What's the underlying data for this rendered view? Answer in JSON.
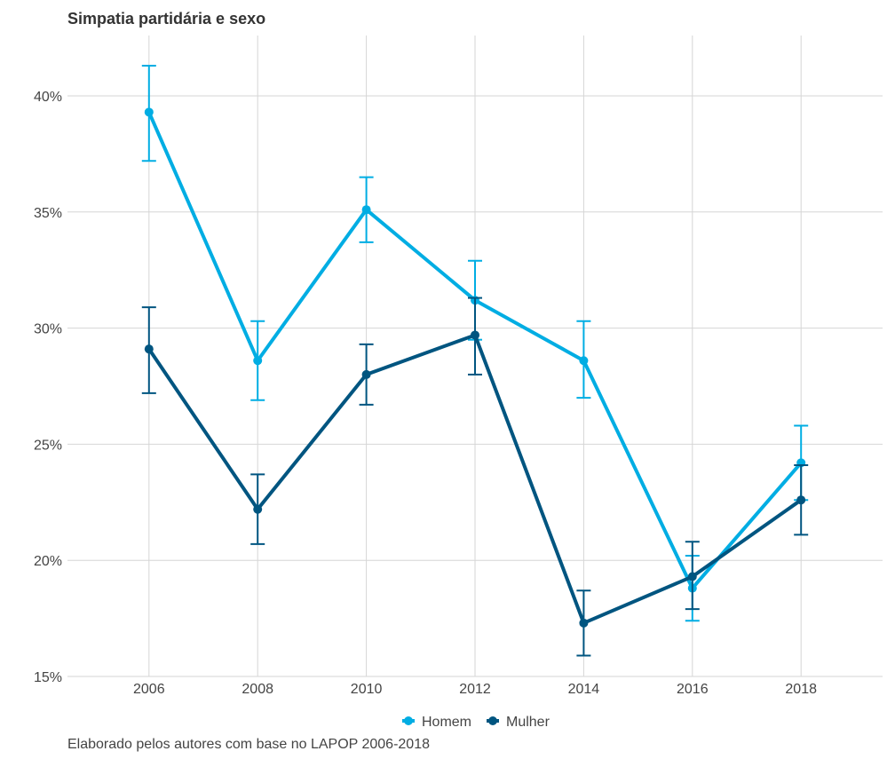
{
  "chart_data": {
    "type": "line",
    "title": "Simpatia partidária e sexo",
    "caption": "Elaborado pelos autores com base no LAPOP 2006-2018",
    "x": [
      2006,
      2008,
      2010,
      2012,
      2014,
      2016,
      2018
    ],
    "x_tick_labels": [
      "2006",
      "2008",
      "2010",
      "2012",
      "2014",
      "2016",
      "2018"
    ],
    "xlim": [
      2004.5,
      2019.5
    ],
    "ylim": [
      15,
      42.6
    ],
    "y_ticks": [
      15,
      20,
      25,
      30,
      35,
      40
    ],
    "y_tick_labels": [
      "15%",
      "20%",
      "25%",
      "30%",
      "35%",
      "40%"
    ],
    "xlabel": "",
    "ylabel": "",
    "grid": true,
    "legend_position": "bottom",
    "series": [
      {
        "name": "Homem",
        "color": "#00ADE3",
        "values": [
          39.3,
          28.6,
          35.1,
          31.2,
          28.6,
          18.8,
          24.2
        ],
        "lower": [
          37.2,
          26.9,
          33.7,
          29.5,
          27.0,
          17.4,
          22.6
        ],
        "upper": [
          41.3,
          30.3,
          36.5,
          32.9,
          30.3,
          20.2,
          25.8
        ]
      },
      {
        "name": "Mulher",
        "color": "#005580",
        "values": [
          29.1,
          22.2,
          28.0,
          29.7,
          17.3,
          19.3,
          22.6
        ],
        "lower": [
          27.2,
          20.7,
          26.7,
          28.0,
          15.9,
          17.9,
          21.1
        ],
        "upper": [
          30.9,
          23.7,
          29.3,
          31.3,
          18.7,
          20.8,
          24.1
        ]
      }
    ]
  }
}
